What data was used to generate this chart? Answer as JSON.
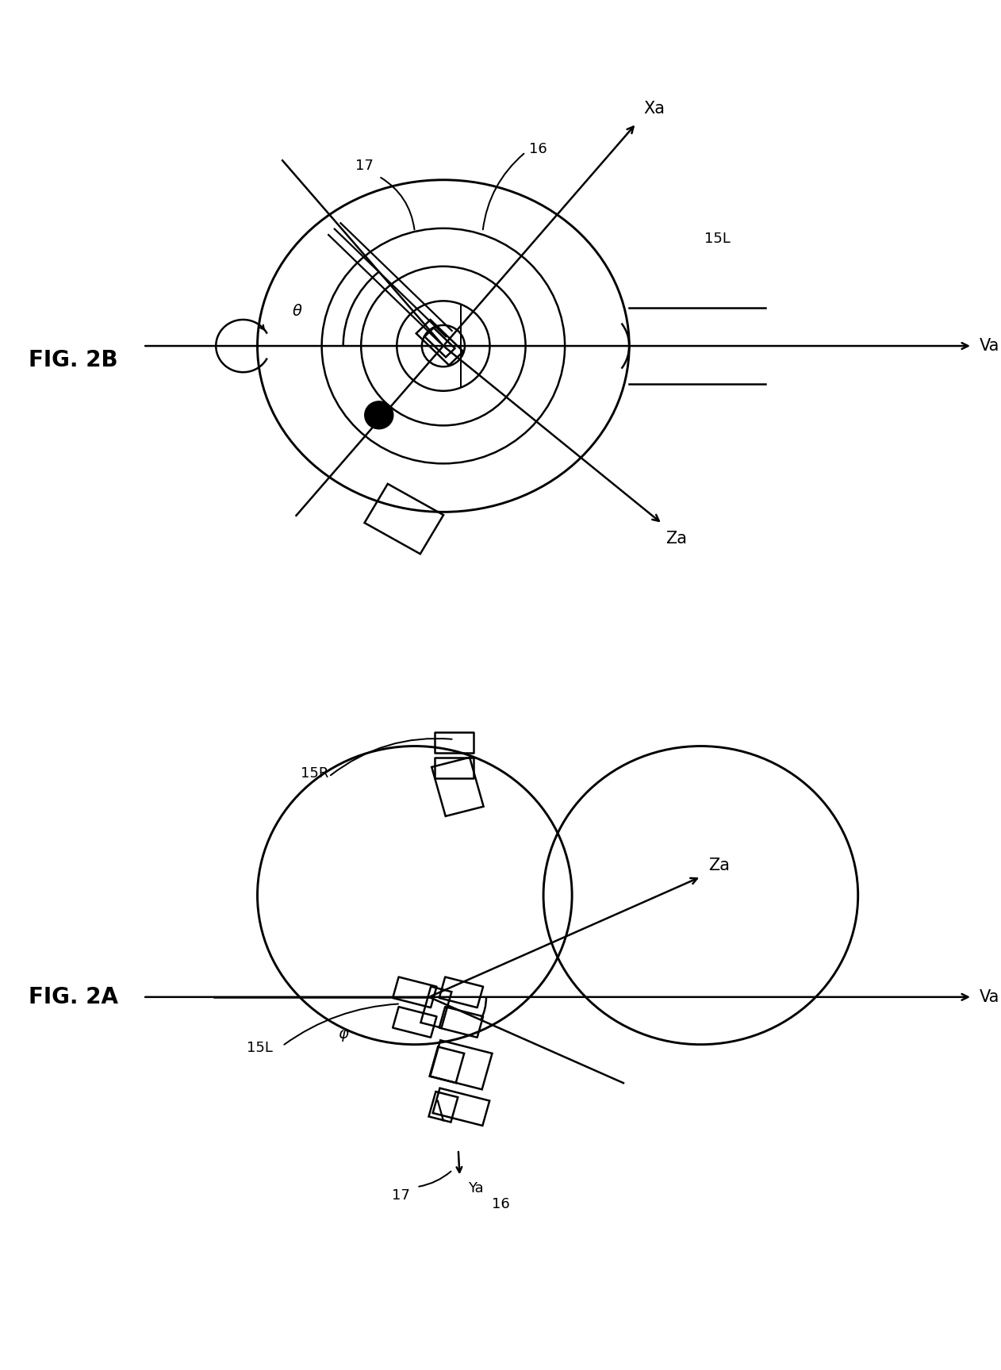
{
  "background_color": "#ffffff",
  "line_color": "#000000",
  "linewidth": 1.8,
  "fig2a_label": "FIG. 2A",
  "fig2b_label": "FIG. 2B",
  "labels": {
    "Va": "Va",
    "Za": "Za",
    "Ya": "Ya",
    "Xa": "Xa",
    "phi": "φ",
    "theta": "θ",
    "15L": "15L",
    "15R": "15R",
    "16": "16",
    "17": "17"
  }
}
